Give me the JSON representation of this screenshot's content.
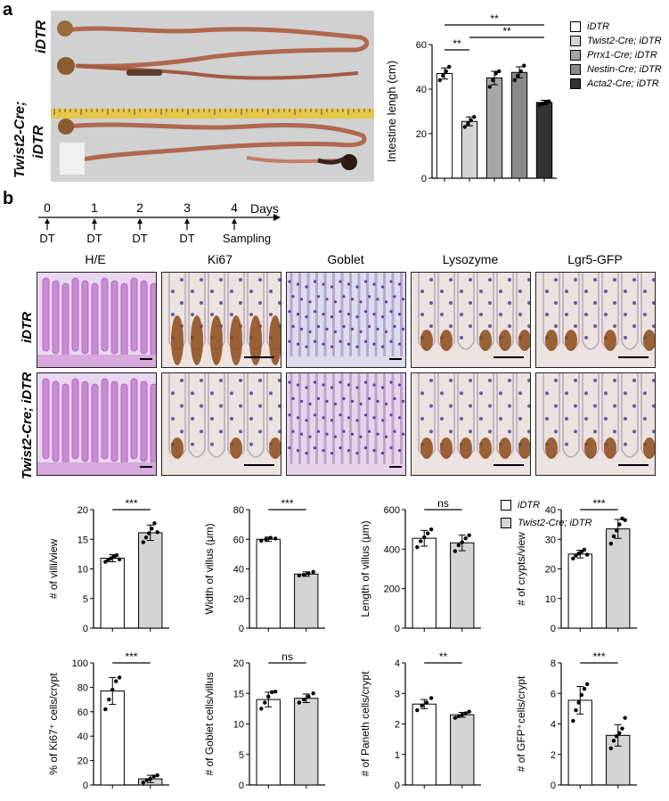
{
  "figure": {
    "panel_a_letter": "a",
    "panel_b_letter": "b",
    "photo": {
      "label_top": "iDTR",
      "label_bottom_line1": "Twist2-Cre;",
      "label_bottom_line2": "iDTR"
    },
    "timeline": {
      "days_label": "Days",
      "ticks": [
        "0",
        "1",
        "2",
        "3",
        "4"
      ],
      "events": [
        "DT",
        "DT",
        "DT",
        "DT",
        "Sampling"
      ]
    },
    "stains": [
      "H/E",
      "Ki67",
      "Goblet",
      "Lysozyme",
      "Lgr5-GFP"
    ],
    "rows": [
      "iDTR",
      "Twist2-Cre; iDTR"
    ],
    "legend_a": [
      "iDTR",
      "Twist2-Cre; iDTR",
      "Prrx1-Cre; iDTR",
      "Nestin-Cre; iDTR",
      "Acta2-Cre; iDTR"
    ],
    "legend_b": [
      "iDTR",
      "Twist2-Cre; iDTR"
    ],
    "colors": {
      "idtr": "#ffffff",
      "twist2": "#d4d4d4",
      "prrx1": "#a6a6a6",
      "nestin": "#8a8a8a",
      "acta2": "#333333",
      "he_stain": "#c98bd3",
      "ihc_brown": "#8b4a17"
    }
  },
  "chart_data": [
    {
      "type": "bar",
      "id": "intestine",
      "categories": [
        "iDTR",
        "Twist2-Cre; iDTR",
        "Prrx1-Cre; iDTR",
        "Nestin-Cre; iDTR",
        "Acta2-Cre; iDTR"
      ],
      "values": [
        47,
        25.5,
        45,
        47.5,
        34
      ],
      "errors": [
        2.5,
        2,
        3,
        2.5,
        1
      ],
      "points": [
        [
          44,
          46,
          48,
          50
        ],
        [
          23,
          24.5,
          26,
          27.5
        ],
        [
          41,
          44,
          47,
          48
        ],
        [
          44,
          46,
          48,
          50.5
        ],
        [
          33,
          33.5,
          34,
          34.5
        ]
      ],
      "ylabel": "Intestine lengh (cm)",
      "ylim": [
        0,
        60
      ],
      "yticks": [
        0,
        20,
        40,
        60
      ],
      "significance": [
        {
          "from": 0,
          "to": 1,
          "label": "**",
          "level": 0
        },
        {
          "from": 1,
          "to": 4,
          "label": "**",
          "level": 1
        },
        {
          "from": 0,
          "to": 4,
          "label": "**",
          "level": 2
        }
      ]
    },
    {
      "type": "bar",
      "id": "villi",
      "categories": [
        "iDTR",
        "Twist2-Cre; iDTR"
      ],
      "values": [
        11.8,
        16.1
      ],
      "errors": [
        0.6,
        1.3
      ],
      "points": [
        [
          11.2,
          11.5,
          11.8,
          12.0,
          12.3,
          11.6
        ],
        [
          14.5,
          15.3,
          16.0,
          16.8,
          17.7,
          16.2
        ]
      ],
      "ylabel": "# of villi/view",
      "ylim": [
        0,
        20
      ],
      "yticks": [
        0,
        5,
        10,
        15,
        20
      ],
      "significance": [
        {
          "from": 0,
          "to": 1,
          "label": "***",
          "level": 0
        }
      ]
    },
    {
      "type": "bar",
      "id": "width",
      "categories": [
        "iDTR",
        "Twist2-Cre; iDTR"
      ],
      "values": [
        60,
        36.5
      ],
      "errors": [
        1.5,
        1.5
      ],
      "points": [
        [
          59,
          60,
          61,
          60.5
        ],
        [
          35.5,
          36,
          37,
          38
        ]
      ],
      "ylabel": "Width of villus (μm)",
      "ylim": [
        0,
        80
      ],
      "yticks": [
        0,
        20,
        40,
        60,
        80
      ],
      "significance": [
        {
          "from": 0,
          "to": 1,
          "label": "***",
          "level": 0
        }
      ]
    },
    {
      "type": "bar",
      "id": "length",
      "categories": [
        "iDTR",
        "Twist2-Cre; iDTR"
      ],
      "values": [
        455,
        432
      ],
      "errors": [
        40,
        40
      ],
      "points": [
        [
          410,
          440,
          460,
          480,
          500
        ],
        [
          390,
          420,
          435,
          455,
          470
        ]
      ],
      "ylabel": "Length of villus (μm)",
      "ylim": [
        0,
        600
      ],
      "yticks": [
        0,
        200,
        400,
        600
      ],
      "significance": [
        {
          "from": 0,
          "to": 1,
          "label": "ns",
          "level": 0
        }
      ]
    },
    {
      "type": "bar",
      "id": "crypts",
      "categories": [
        "iDTR",
        "Twist2-Cre; iDTR"
      ],
      "values": [
        25,
        33.5
      ],
      "errors": [
        1.3,
        3.2
      ],
      "points": [
        [
          23.5,
          24.5,
          25.2,
          25.8,
          26.5,
          24.8
        ],
        [
          28.5,
          31,
          33,
          35,
          37,
          36.5
        ]
      ],
      "ylabel": "# of crypts/view",
      "ylim": [
        0,
        40
      ],
      "yticks": [
        0,
        10,
        20,
        30,
        40
      ],
      "significance": [
        {
          "from": 0,
          "to": 1,
          "label": "***",
          "level": 0
        }
      ]
    },
    {
      "type": "bar",
      "id": "ki67",
      "categories": [
        "iDTR",
        "Twist2-Cre; iDTR"
      ],
      "values": [
        77,
        5
      ],
      "errors": [
        11,
        3
      ],
      "points": [
        [
          62,
          70,
          78,
          85,
          88
        ],
        [
          2,
          4,
          5,
          7,
          8
        ]
      ],
      "ylabel": "% of Ki67⁺ cells/crypt",
      "ylim": [
        0,
        100
      ],
      "yticks": [
        0,
        20,
        40,
        60,
        80,
        100
      ],
      "significance": [
        {
          "from": 0,
          "to": 1,
          "label": "***",
          "level": 0
        }
      ]
    },
    {
      "type": "bar",
      "id": "goblet",
      "categories": [
        "iDTR",
        "Twist2-Cre; iDTR"
      ],
      "values": [
        14,
        14.2
      ],
      "errors": [
        1.2,
        0.7
      ],
      "points": [
        [
          12.5,
          13.5,
          14.5,
          15.2,
          15.3
        ],
        [
          13.5,
          14,
          14.5,
          15
        ]
      ],
      "ylabel": "# of Goblet cells/villus",
      "ylim": [
        0,
        20
      ],
      "yticks": [
        0,
        5,
        10,
        15,
        20
      ],
      "significance": [
        {
          "from": 0,
          "to": 1,
          "label": "ns",
          "level": 0
        }
      ]
    },
    {
      "type": "bar",
      "id": "paneth",
      "categories": [
        "iDTR",
        "Twist2-Cre; iDTR"
      ],
      "values": [
        2.65,
        2.3
      ],
      "errors": [
        0.15,
        0.08
      ],
      "points": [
        [
          2.45,
          2.6,
          2.7,
          2.85
        ],
        [
          2.2,
          2.25,
          2.3,
          2.35,
          2.4
        ]
      ],
      "ylabel": "# of Paneth cells/crypt",
      "ylim": [
        0,
        4
      ],
      "yticks": [
        0,
        1,
        2,
        3,
        4
      ],
      "significance": [
        {
          "from": 0,
          "to": 1,
          "label": "**",
          "level": 0
        }
      ]
    },
    {
      "type": "bar",
      "id": "gfp",
      "categories": [
        "iDTR",
        "Twist2-Cre; iDTR"
      ],
      "values": [
        5.55,
        3.25
      ],
      "errors": [
        0.9,
        0.7
      ],
      "points": [
        [
          4.2,
          4.9,
          5.4,
          5.9,
          6.3,
          6.6
        ],
        [
          2.4,
          2.9,
          3.2,
          3.4,
          3.7,
          4.4
        ]
      ],
      "ylabel": "# of GFP⁺cells/crypt",
      "ylim": [
        0,
        8
      ],
      "yticks": [
        0,
        2,
        4,
        6,
        8
      ],
      "significance": [
        {
          "from": 0,
          "to": 1,
          "label": "***",
          "level": 0
        }
      ]
    }
  ]
}
